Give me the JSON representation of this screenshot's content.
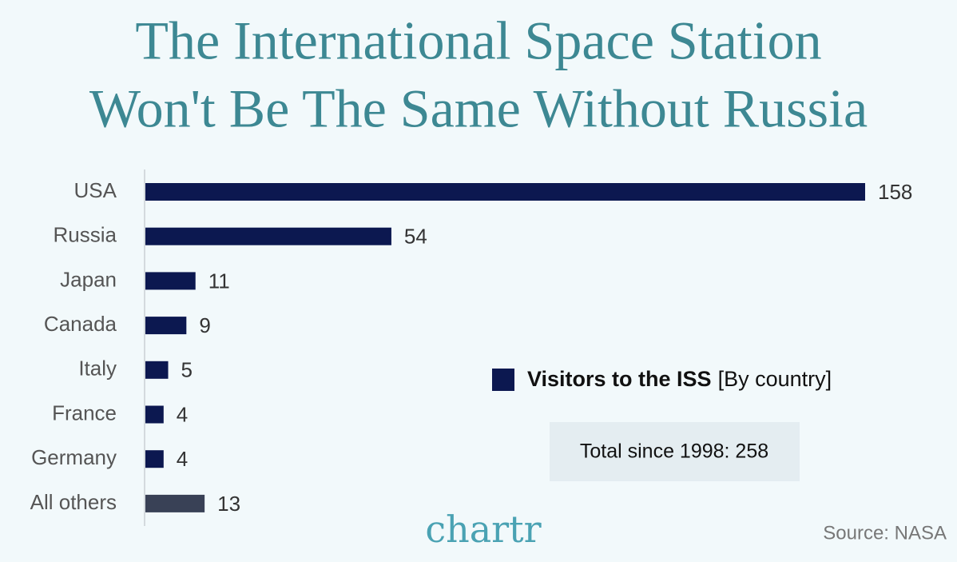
{
  "chart_data": {
    "type": "hbar",
    "title_lines": [
      "The International Space Station",
      "Won't Be The Same Without Russia"
    ],
    "categories": [
      "USA",
      "Russia",
      "Japan",
      "Canada",
      "Italy",
      "France",
      "Germany",
      "All others"
    ],
    "series": [
      {
        "name": "Visitors to the ISS",
        "color": "#0c1850",
        "values": [
          158,
          54,
          11,
          9,
          5,
          4,
          4,
          13
        ],
        "colors": [
          "#0c1850",
          "#0c1850",
          "#0c1850",
          "#0c1850",
          "#0c1850",
          "#0c1850",
          "#0c1850",
          "#394156"
        ]
      }
    ],
    "legend_note": "[By country]",
    "annotation": "Total since 1998: 258",
    "logo": "chartr",
    "source": "Source: NASA"
  }
}
